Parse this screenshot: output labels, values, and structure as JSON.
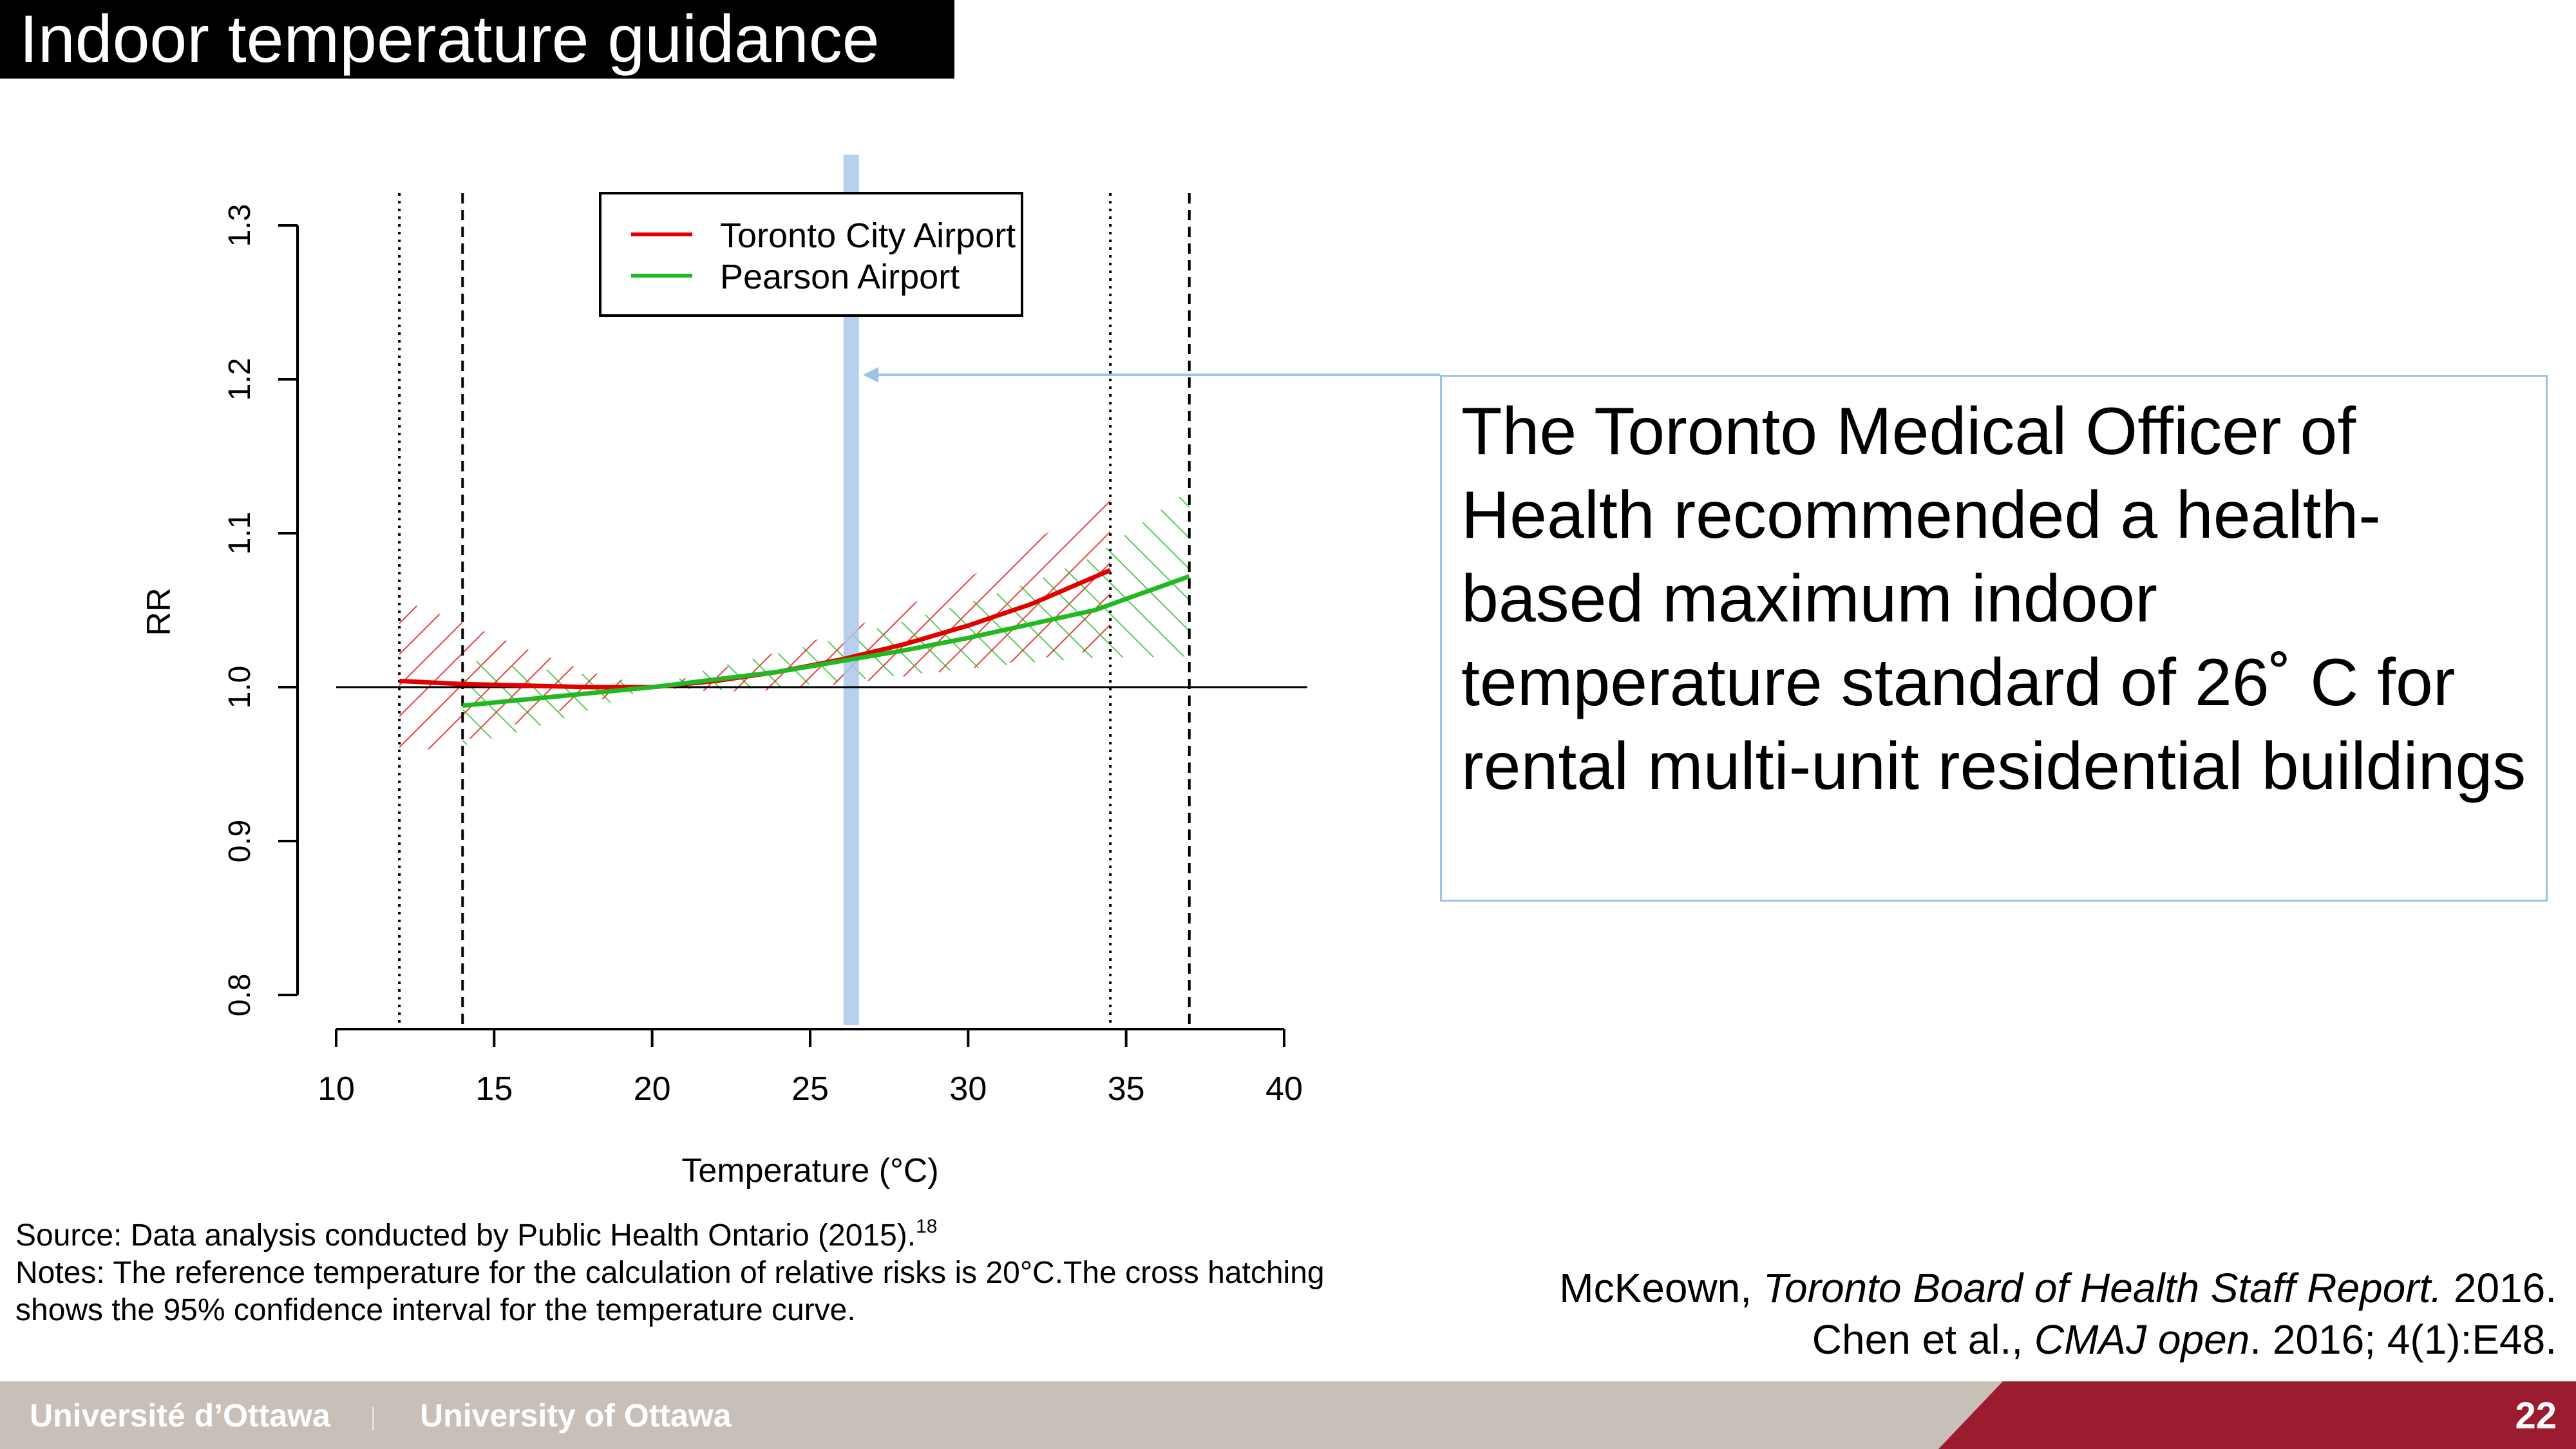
{
  "slide": {
    "title": "Indoor temperature guidance",
    "callout": "The Toronto Medical Officer of Health recommended a health-based maximum indoor temperature standard of 26˚ C for rental multi-unit residential buildings",
    "source_line": "Source: Data analysis conducted by Public Health Ontario (2015).",
    "source_sup": "18",
    "notes_line1": "Notes: The reference temperature for the calculation of relative risks is 20°C.The cross hatching",
    "notes_line2": "shows the 95% confidence interval for the temperature curve.",
    "ref1_author": "McKeown, ",
    "ref1_title": "Toronto Board of Health Staff Report.",
    "ref1_year": " 2016.",
    "ref2_author": "Chen et al., ",
    "ref2_title": "CMAJ open",
    "ref2_rest": ". 2016; 4(1):E48.",
    "page_number": "22"
  },
  "footer": {
    "university_fr": "Université d’Ottawa",
    "university_en": "University of Ottawa"
  },
  "colors": {
    "toronto_city_airport": "#e00000",
    "pearson_airport": "#22b822",
    "highlight": "#a9c8ea",
    "callout_border": "#9dc3e6",
    "footer_gray": "#c8c0b8",
    "footer_red": "#9b1c2e"
  },
  "chart_data": {
    "type": "line",
    "title": "",
    "xlabel": "Temperature (°C)",
    "ylabel": "RR",
    "xlim": [
      10,
      40
    ],
    "ylim": [
      0.8,
      1.3
    ],
    "xticks": [
      10,
      15,
      20,
      25,
      30,
      35,
      40
    ],
    "yticks": [
      0.8,
      0.9,
      1.0,
      1.1,
      1.2,
      1.3
    ],
    "reference_line_y": 1.0,
    "highlight_x": 26.3,
    "vertical_lines": [
      {
        "x": 12,
        "style": "dotted"
      },
      {
        "x": 14,
        "style": "dashed"
      },
      {
        "x": 34.5,
        "style": "dotted"
      },
      {
        "x": 37,
        "style": "dashed"
      }
    ],
    "legend": {
      "position": "top-center"
    },
    "series": [
      {
        "name": "Toronto City Airport",
        "color": "#e00000",
        "x": [
          12,
          14,
          16,
          18,
          20,
          22,
          24,
          26,
          28,
          30,
          32,
          34.5
        ],
        "y": [
          1.004,
          1.002,
          1.001,
          1.0,
          1.0,
          1.004,
          1.01,
          1.018,
          1.028,
          1.04,
          1.054,
          1.076
        ],
        "lower": [
          0.955,
          0.965,
          0.978,
          0.99,
          1.0,
          0.997,
          0.998,
          1.002,
          1.007,
          1.012,
          1.018,
          1.025
        ],
        "upper": [
          1.057,
          1.042,
          1.025,
          1.01,
          1.0,
          1.011,
          1.023,
          1.036,
          1.052,
          1.071,
          1.094,
          1.125
        ]
      },
      {
        "name": "Pearson Airport",
        "color": "#22b822",
        "x": [
          14,
          16,
          18,
          20,
          22,
          24,
          26,
          28,
          30,
          32,
          34,
          37
        ],
        "y": [
          0.988,
          0.992,
          0.996,
          1.0,
          1.005,
          1.01,
          1.017,
          1.024,
          1.032,
          1.041,
          1.05,
          1.072
        ],
        "lower": [
          0.962,
          0.972,
          0.985,
          1.0,
          0.998,
          1.0,
          1.004,
          1.008,
          1.012,
          1.016,
          1.019,
          1.02
        ],
        "upper": [
          1.018,
          1.013,
          1.008,
          1.0,
          1.013,
          1.022,
          1.032,
          1.043,
          1.055,
          1.068,
          1.085,
          1.128
        ]
      }
    ]
  }
}
